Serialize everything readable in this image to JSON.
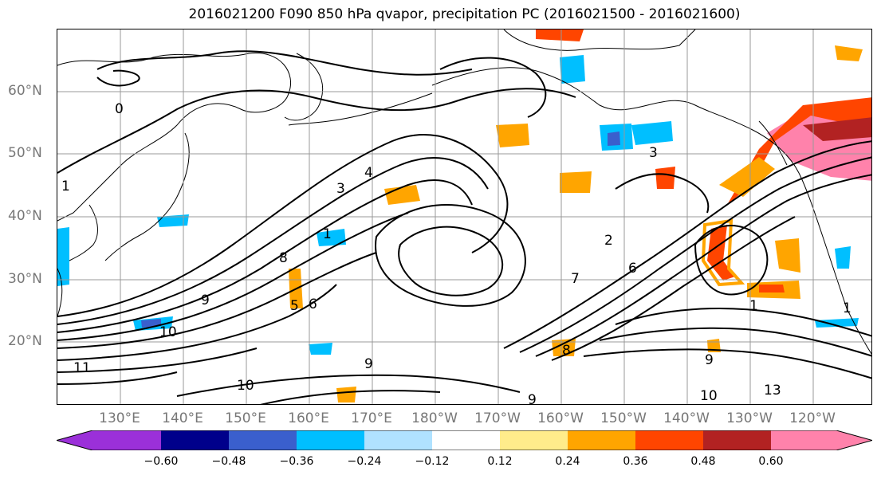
{
  "title": "2016021200 F090 850 hPa qvapor, precipitation PC (2016021500 - 2016021600)",
  "lat_labels": [
    "60°N",
    "50°N",
    "40°N",
    "30°N",
    "20°N"
  ],
  "lon_labels": [
    "130°E",
    "140°E",
    "150°E",
    "160°E",
    "170°E",
    "180°W",
    "170°W",
    "160°W",
    "150°W",
    "140°W",
    "130°W",
    "120°W"
  ],
  "contour_labels": [
    "0",
    "1",
    "1",
    "3",
    "4",
    "5",
    "6",
    "7",
    "8",
    "9",
    "10",
    "11",
    "9",
    "10",
    "1",
    "1",
    "2",
    "3",
    "6",
    "9",
    "10",
    "13",
    "9",
    "8"
  ],
  "colorbar": {
    "colors": [
      "#9b30d9",
      "#00008b",
      "#3a5fcd",
      "#00bfff",
      "#b0e2ff",
      "#ffffff",
      "#ffec8b",
      "#ffa500",
      "#ff4500",
      "#b22222",
      "#ff82ab"
    ],
    "tick_labels": [
      "−0.60",
      "−0.48",
      "−0.36",
      "−0.24",
      "−0.12",
      "0.12",
      "0.24",
      "0.36",
      "0.48",
      "0.60"
    ]
  }
}
